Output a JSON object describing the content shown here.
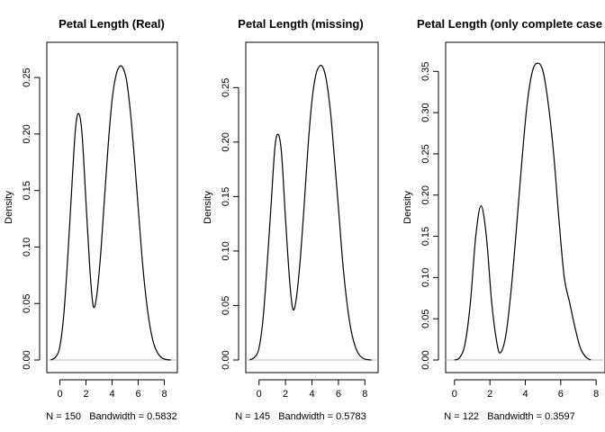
{
  "chart_data": [
    {
      "type": "line",
      "title": "Petal Length (Real)",
      "ylabel": "Density",
      "xlabel": "N = 150   Bandwidth = 0.5832",
      "xlim": [
        -1.0,
        9.0
      ],
      "ylim": [
        0.0,
        0.27
      ],
      "xticks": [
        "0",
        "2",
        "4",
        "6",
        "8"
      ],
      "yticks": [
        "0.00",
        "0.05",
        "0.10",
        "0.15",
        "0.20",
        "0.25"
      ],
      "zero_line": true,
      "series": [
        {
          "x": [
            -0.7,
            -0.3,
            0.0,
            0.3,
            0.6,
            0.9,
            1.2,
            1.45,
            1.7,
            2.0,
            2.3,
            2.55,
            2.8,
            3.1,
            3.4,
            3.7,
            4.0,
            4.3,
            4.6,
            4.85,
            5.1,
            5.4,
            5.7,
            6.0,
            6.3,
            6.6,
            6.9,
            7.2,
            7.5,
            7.8,
            8.1,
            8.5
          ],
          "y": [
            0.0,
            0.003,
            0.012,
            0.04,
            0.09,
            0.15,
            0.205,
            0.218,
            0.2,
            0.14,
            0.08,
            0.048,
            0.055,
            0.09,
            0.14,
            0.19,
            0.23,
            0.252,
            0.26,
            0.258,
            0.248,
            0.22,
            0.18,
            0.135,
            0.09,
            0.055,
            0.03,
            0.014,
            0.006,
            0.002,
            0.0005,
            0.0
          ]
        }
      ]
    },
    {
      "type": "line",
      "title": "Petal Length (missing)",
      "ylabel": "Density",
      "xlabel": "N = 145   Bandwidth = 0.5783",
      "xlim": [
        -1.0,
        9.0
      ],
      "ylim": [
        0.0,
        0.28
      ],
      "xticks": [
        "0",
        "2",
        "4",
        "6",
        "8"
      ],
      "yticks": [
        "0.00",
        "0.05",
        "0.10",
        "0.15",
        "0.20",
        "0.25"
      ],
      "zero_line": true,
      "series": [
        {
          "x": [
            -0.7,
            -0.3,
            0.0,
            0.3,
            0.6,
            0.9,
            1.2,
            1.45,
            1.7,
            2.0,
            2.3,
            2.55,
            2.8,
            3.1,
            3.4,
            3.7,
            4.0,
            4.3,
            4.6,
            4.85,
            5.1,
            5.4,
            5.7,
            6.0,
            6.3,
            6.6,
            6.9,
            7.2,
            7.5,
            7.8,
            8.1,
            8.5
          ],
          "y": [
            0.0,
            0.003,
            0.011,
            0.037,
            0.085,
            0.14,
            0.195,
            0.207,
            0.19,
            0.13,
            0.075,
            0.047,
            0.055,
            0.09,
            0.14,
            0.195,
            0.238,
            0.262,
            0.27,
            0.268,
            0.256,
            0.228,
            0.185,
            0.14,
            0.093,
            0.057,
            0.031,
            0.015,
            0.006,
            0.002,
            0.0005,
            0.0
          ]
        }
      ]
    },
    {
      "type": "line",
      "title": "Petal Length (only complete case",
      "ylabel": "Density",
      "xlabel": "N = 122   Bandwidth = 0.3597",
      "xlim": [
        -0.5,
        8.5
      ],
      "ylim": [
        0.0,
        0.37
      ],
      "xticks": [
        "0",
        "2",
        "4",
        "6",
        "8"
      ],
      "yticks": [
        "0.00",
        "0.05",
        "0.10",
        "0.15",
        "0.20",
        "0.25",
        "0.30",
        "0.35"
      ],
      "zero_line": true,
      "series": [
        {
          "x": [
            0.0,
            0.3,
            0.6,
            0.9,
            1.2,
            1.5,
            1.8,
            2.1,
            2.4,
            2.6,
            2.9,
            3.2,
            3.5,
            3.8,
            4.1,
            4.4,
            4.7,
            5.0,
            5.3,
            5.6,
            5.9,
            6.2,
            6.5,
            6.8,
            7.1,
            7.4,
            7.7
          ],
          "y": [
            0.0,
            0.003,
            0.02,
            0.07,
            0.15,
            0.187,
            0.15,
            0.07,
            0.02,
            0.009,
            0.03,
            0.085,
            0.16,
            0.24,
            0.31,
            0.35,
            0.36,
            0.35,
            0.31,
            0.25,
            0.17,
            0.1,
            0.07,
            0.04,
            0.015,
            0.004,
            0.0
          ]
        }
      ]
    }
  ]
}
